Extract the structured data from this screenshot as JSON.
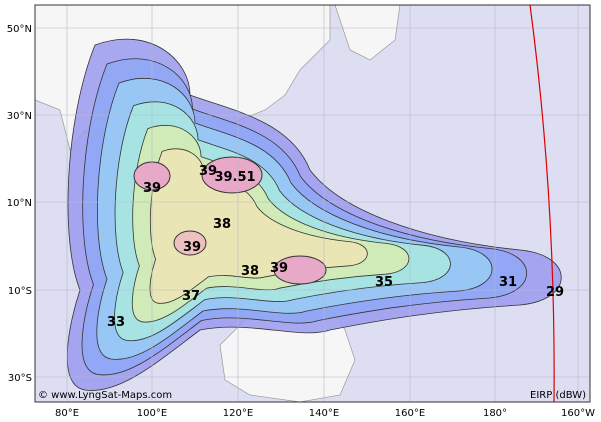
{
  "map": {
    "latitude_labels": [
      "50°N",
      "30°N",
      "10°N",
      "10°S",
      "30°S"
    ],
    "longitude_labels": [
      "80°E",
      "100°E",
      "120°E",
      "140°E",
      "160°E",
      "180°",
      "160°W"
    ],
    "contour_labels": [
      39,
      39,
      39.51,
      38,
      39,
      38,
      39,
      37,
      35,
      31,
      33,
      29
    ],
    "credit": "© www.LyngSat-Maps.com",
    "legend": "EIRP (dBW)"
  }
}
